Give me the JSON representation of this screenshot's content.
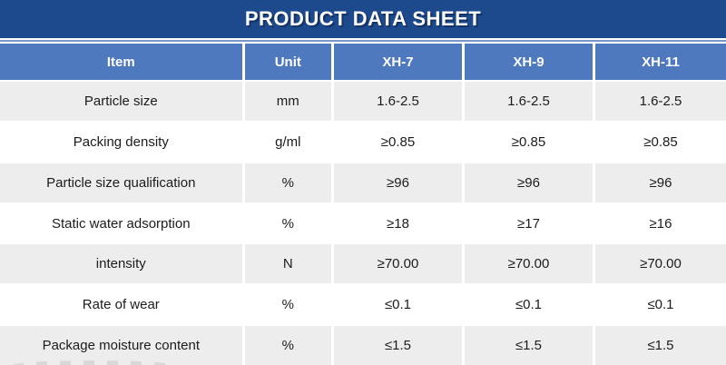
{
  "banner": {
    "title": "PRODUCT DATA SHEET"
  },
  "colors": {
    "banner_bg": "#1d4a8c",
    "header_bg": "#4e79be",
    "stripe_bg": "#ededed",
    "accent_line": "#7e97cb",
    "body_text": "#1c1c1c",
    "header_text": "#ffffff"
  },
  "table": {
    "headers": [
      "Item",
      "Unit",
      "XH-7",
      "XH-9",
      "XH-11"
    ],
    "rows": [
      {
        "item": "Particle size",
        "unit": "mm",
        "values": [
          "1.6-2.5",
          "1.6-2.5",
          "1.6-2.5"
        ]
      },
      {
        "item": "Packing density",
        "unit": "g/ml",
        "values": [
          "≥0.85",
          "≥0.85",
          "≥0.85"
        ]
      },
      {
        "item": "Particle size qualification",
        "unit": "%",
        "values": [
          "≥96",
          "≥96",
          "≥96"
        ]
      },
      {
        "item": "Static water adsorption",
        "unit": "%",
        "values": [
          "≥18",
          "≥17",
          "≥16"
        ]
      },
      {
        "item": "intensity",
        "unit": "N",
        "values": [
          "≥70.00",
          "≥70.00",
          "≥70.00"
        ]
      },
      {
        "item": "Rate of wear",
        "unit": "%",
        "values": [
          "≤0.1",
          "≤0.1",
          "≤0.1"
        ]
      },
      {
        "item": "Package moisture content",
        "unit": "%",
        "values": [
          "≤1.5",
          "≤1.5",
          "≤1.5"
        ]
      }
    ]
  }
}
